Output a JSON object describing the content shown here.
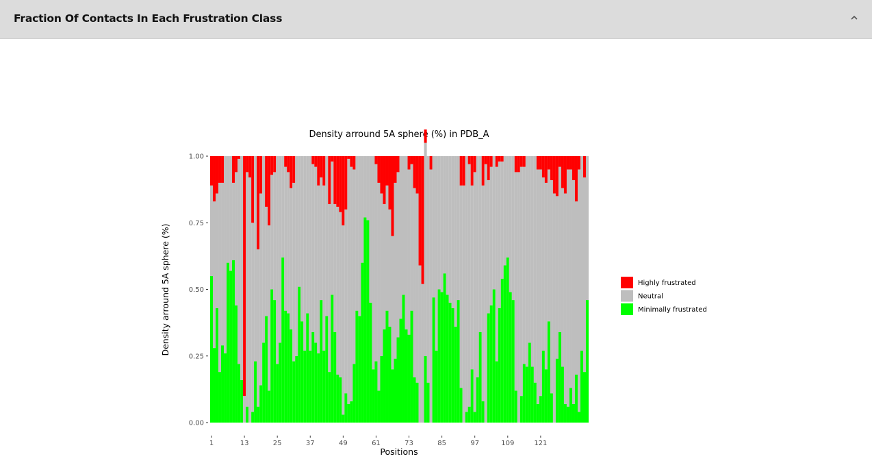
{
  "panel": {
    "title": "Fraction Of Contacts In Each Frustration Class",
    "collapse_icon": "chevron-up-icon"
  },
  "chart_data": {
    "type": "bar",
    "stacked": true,
    "title": "Density arround 5A sphere (%) in PDB_A",
    "xlabel": "Positions",
    "ylabel": "Density arround 5A sphere (%)",
    "ylim": [
      0,
      1
    ],
    "yticks": [
      "0.00",
      "0.25",
      "0.50",
      "0.75",
      "1.00"
    ],
    "xticks": [
      "1",
      "13",
      "25",
      "37",
      "49",
      "61",
      "73",
      "85",
      "97",
      "109",
      "121"
    ],
    "x_start": 1,
    "grid": false,
    "legend_position": "right",
    "series": [
      {
        "name": "Minimally frustrated",
        "color": "#00ff00",
        "values": [
          0.55,
          0.28,
          0.43,
          0.19,
          0.29,
          0.26,
          0.6,
          0.57,
          0.61,
          0.44,
          0.22,
          0.16,
          0.0,
          0.06,
          0.0,
          0.04,
          0.23,
          0.06,
          0.14,
          0.3,
          0.4,
          0.12,
          0.5,
          0.46,
          0.22,
          0.3,
          0.62,
          0.42,
          0.41,
          0.35,
          0.23,
          0.25,
          0.51,
          0.38,
          0.27,
          0.41,
          0.27,
          0.34,
          0.3,
          0.26,
          0.46,
          0.27,
          0.4,
          0.19,
          0.48,
          0.34,
          0.18,
          0.17,
          0.03,
          0.11,
          0.07,
          0.08,
          0.22,
          0.42,
          0.4,
          0.6,
          0.77,
          0.76,
          0.45,
          0.2,
          0.23,
          0.12,
          0.25,
          0.35,
          0.42,
          0.36,
          0.2,
          0.24,
          0.32,
          0.39,
          0.48,
          0.35,
          0.33,
          0.42,
          0.17,
          0.15,
          0.0,
          0.0,
          0.25,
          0.15,
          0.0,
          0.47,
          0.27,
          0.5,
          0.49,
          0.56,
          0.48,
          0.45,
          0.43,
          0.36,
          0.46,
          0.13,
          0.0,
          0.04,
          0.06,
          0.2,
          0.04,
          0.17,
          0.34,
          0.08,
          0.0,
          0.41,
          0.44,
          0.5,
          0.23,
          0.43,
          0.54,
          0.59,
          0.62,
          0.49,
          0.46,
          0.12,
          0.0,
          0.1,
          0.22,
          0.21,
          0.3,
          0.21,
          0.15,
          0.07,
          0.1,
          0.27,
          0.2,
          0.38,
          0.11,
          0.0,
          0.24,
          0.34,
          0.21,
          0.07,
          0.06,
          0.13,
          0.07,
          0.18,
          0.04,
          0.27,
          0.19,
          0.46
        ]
      },
      {
        "name": "Neutral",
        "color": "#bebebe",
        "values": [
          0.34,
          0.55,
          0.43,
          0.71,
          0.61,
          0.74,
          0.4,
          0.43,
          0.29,
          0.5,
          0.77,
          0.84,
          0.1,
          0.88,
          0.92,
          0.71,
          0.77,
          0.59,
          0.72,
          0.7,
          0.41,
          0.62,
          0.43,
          0.48,
          0.78,
          0.7,
          0.38,
          0.54,
          0.53,
          0.53,
          0.67,
          0.75,
          0.49,
          0.62,
          0.73,
          0.59,
          0.73,
          0.63,
          0.66,
          0.63,
          0.46,
          0.62,
          0.6,
          0.63,
          0.5,
          0.48,
          0.63,
          0.62,
          0.71,
          0.69,
          0.92,
          0.88,
          0.73,
          0.58,
          0.6,
          0.4,
          0.23,
          0.24,
          0.55,
          0.8,
          0.74,
          0.78,
          0.61,
          0.47,
          0.47,
          0.44,
          0.5,
          0.66,
          0.62,
          0.61,
          0.52,
          0.65,
          0.62,
          0.55,
          0.71,
          0.71,
          0.59,
          0.52,
          0.8,
          0.85,
          0.95,
          0.53,
          0.73,
          0.5,
          0.51,
          0.44,
          0.52,
          0.55,
          0.57,
          0.64,
          0.54,
          0.76,
          0.89,
          0.96,
          0.91,
          0.69,
          0.9,
          0.83,
          0.66,
          0.81,
          0.97,
          0.5,
          0.52,
          0.5,
          0.73,
          0.55,
          0.44,
          0.41,
          0.38,
          0.51,
          0.54,
          0.82,
          0.94,
          0.86,
          0.74,
          0.79,
          0.7,
          0.79,
          0.85,
          0.88,
          0.85,
          0.65,
          0.7,
          0.57,
          0.8,
          0.86,
          0.61,
          0.62,
          0.67,
          0.79,
          0.89,
          0.82,
          0.84,
          0.65,
          0.91,
          0.73,
          0.73,
          0.54
        ]
      },
      {
        "name": "Highly frustrated",
        "color": "#ff0000",
        "values": [
          0.11,
          0.17,
          0.14,
          0.1,
          0.1,
          0.0,
          0.0,
          0.0,
          0.1,
          0.06,
          0.01,
          0.0,
          0.9,
          0.06,
          0.08,
          0.25,
          0.0,
          0.35,
          0.14,
          0.0,
          0.19,
          0.26,
          0.07,
          0.06,
          0.0,
          0.0,
          0.0,
          0.04,
          0.06,
          0.12,
          0.1,
          0.0,
          0.0,
          0.0,
          0.0,
          0.0,
          0.0,
          0.03,
          0.04,
          0.11,
          0.08,
          0.11,
          0.0,
          0.18,
          0.02,
          0.18,
          0.19,
          0.21,
          0.26,
          0.2,
          0.01,
          0.04,
          0.05,
          0.0,
          0.0,
          0.0,
          0.0,
          0.0,
          0.0,
          0.0,
          0.03,
          0.1,
          0.14,
          0.18,
          0.11,
          0.2,
          0.3,
          0.1,
          0.06,
          0.0,
          0.0,
          0.0,
          0.05,
          0.03,
          0.12,
          0.14,
          0.41,
          0.48,
          0.05,
          0.0,
          0.05,
          0.0,
          0.0,
          0.0,
          0.0,
          0.0,
          0.0,
          0.0,
          0.0,
          0.0,
          0.0,
          0.11,
          0.11,
          0.0,
          0.03,
          0.11,
          0.06,
          0.0,
          0.0,
          0.11,
          0.03,
          0.09,
          0.04,
          0.0,
          0.04,
          0.02,
          0.02,
          0.0,
          0.0,
          0.0,
          0.0,
          0.06,
          0.06,
          0.04,
          0.04,
          0.0,
          0.0,
          0.0,
          0.0,
          0.05,
          0.05,
          0.08,
          0.1,
          0.05,
          0.09,
          0.14,
          0.15,
          0.04,
          0.12,
          0.14,
          0.05,
          0.05,
          0.09,
          0.17,
          0.05,
          0.0,
          0.08,
          0.0
        ]
      }
    ]
  }
}
